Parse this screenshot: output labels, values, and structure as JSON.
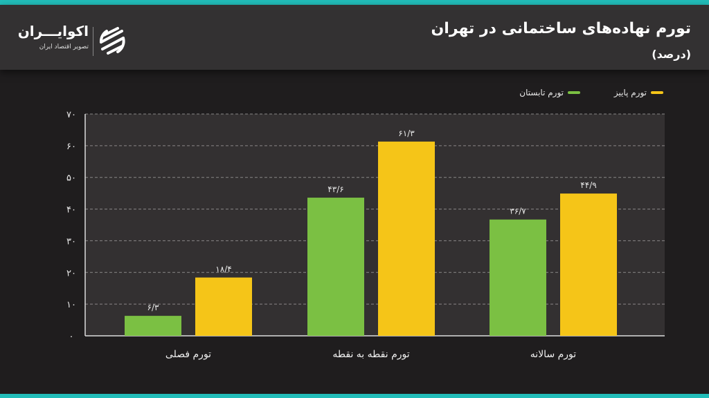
{
  "header": {
    "title": "تورم نهاده‌های ساختمانی در تهران",
    "subtitle": "(درصد)"
  },
  "logo": {
    "name": "اکوایـــران",
    "tagline": "تصویر اقتصاد ایران"
  },
  "colors": {
    "summer": "#7bc043",
    "autumn": "#f5c518",
    "accent": "#22bdb9"
  },
  "chart_data": {
    "type": "bar",
    "title": "تورم نهاده‌های ساختمانی در تهران",
    "unit": "(درصد)",
    "categories": [
      "تورم فصلی",
      "تورم نقطه به نقطه",
      "تورم سالانه"
    ],
    "series": [
      {
        "name": "تورم تابستان",
        "color": "#7bc043",
        "values": [
          6.3,
          43.6,
          36.7
        ],
        "labels": [
          "۶/۳",
          "۴۳/۶",
          "۳۶/۷"
        ]
      },
      {
        "name": "تورم پاییز",
        "color": "#f5c518",
        "values": [
          18.4,
          61.3,
          44.9
        ],
        "labels": [
          "۱۸/۴",
          "۶۱/۳",
          "۴۴/۹"
        ]
      }
    ],
    "ylim": [
      0,
      70
    ],
    "yticks": [
      0,
      10,
      20,
      30,
      40,
      50,
      60,
      70
    ],
    "ytick_labels": [
      "۰",
      "۱۰",
      "۲۰",
      "۳۰",
      "۴۰",
      "۵۰",
      "۶۰",
      "۷۰"
    ],
    "grid": true,
    "legend": "top-right"
  }
}
